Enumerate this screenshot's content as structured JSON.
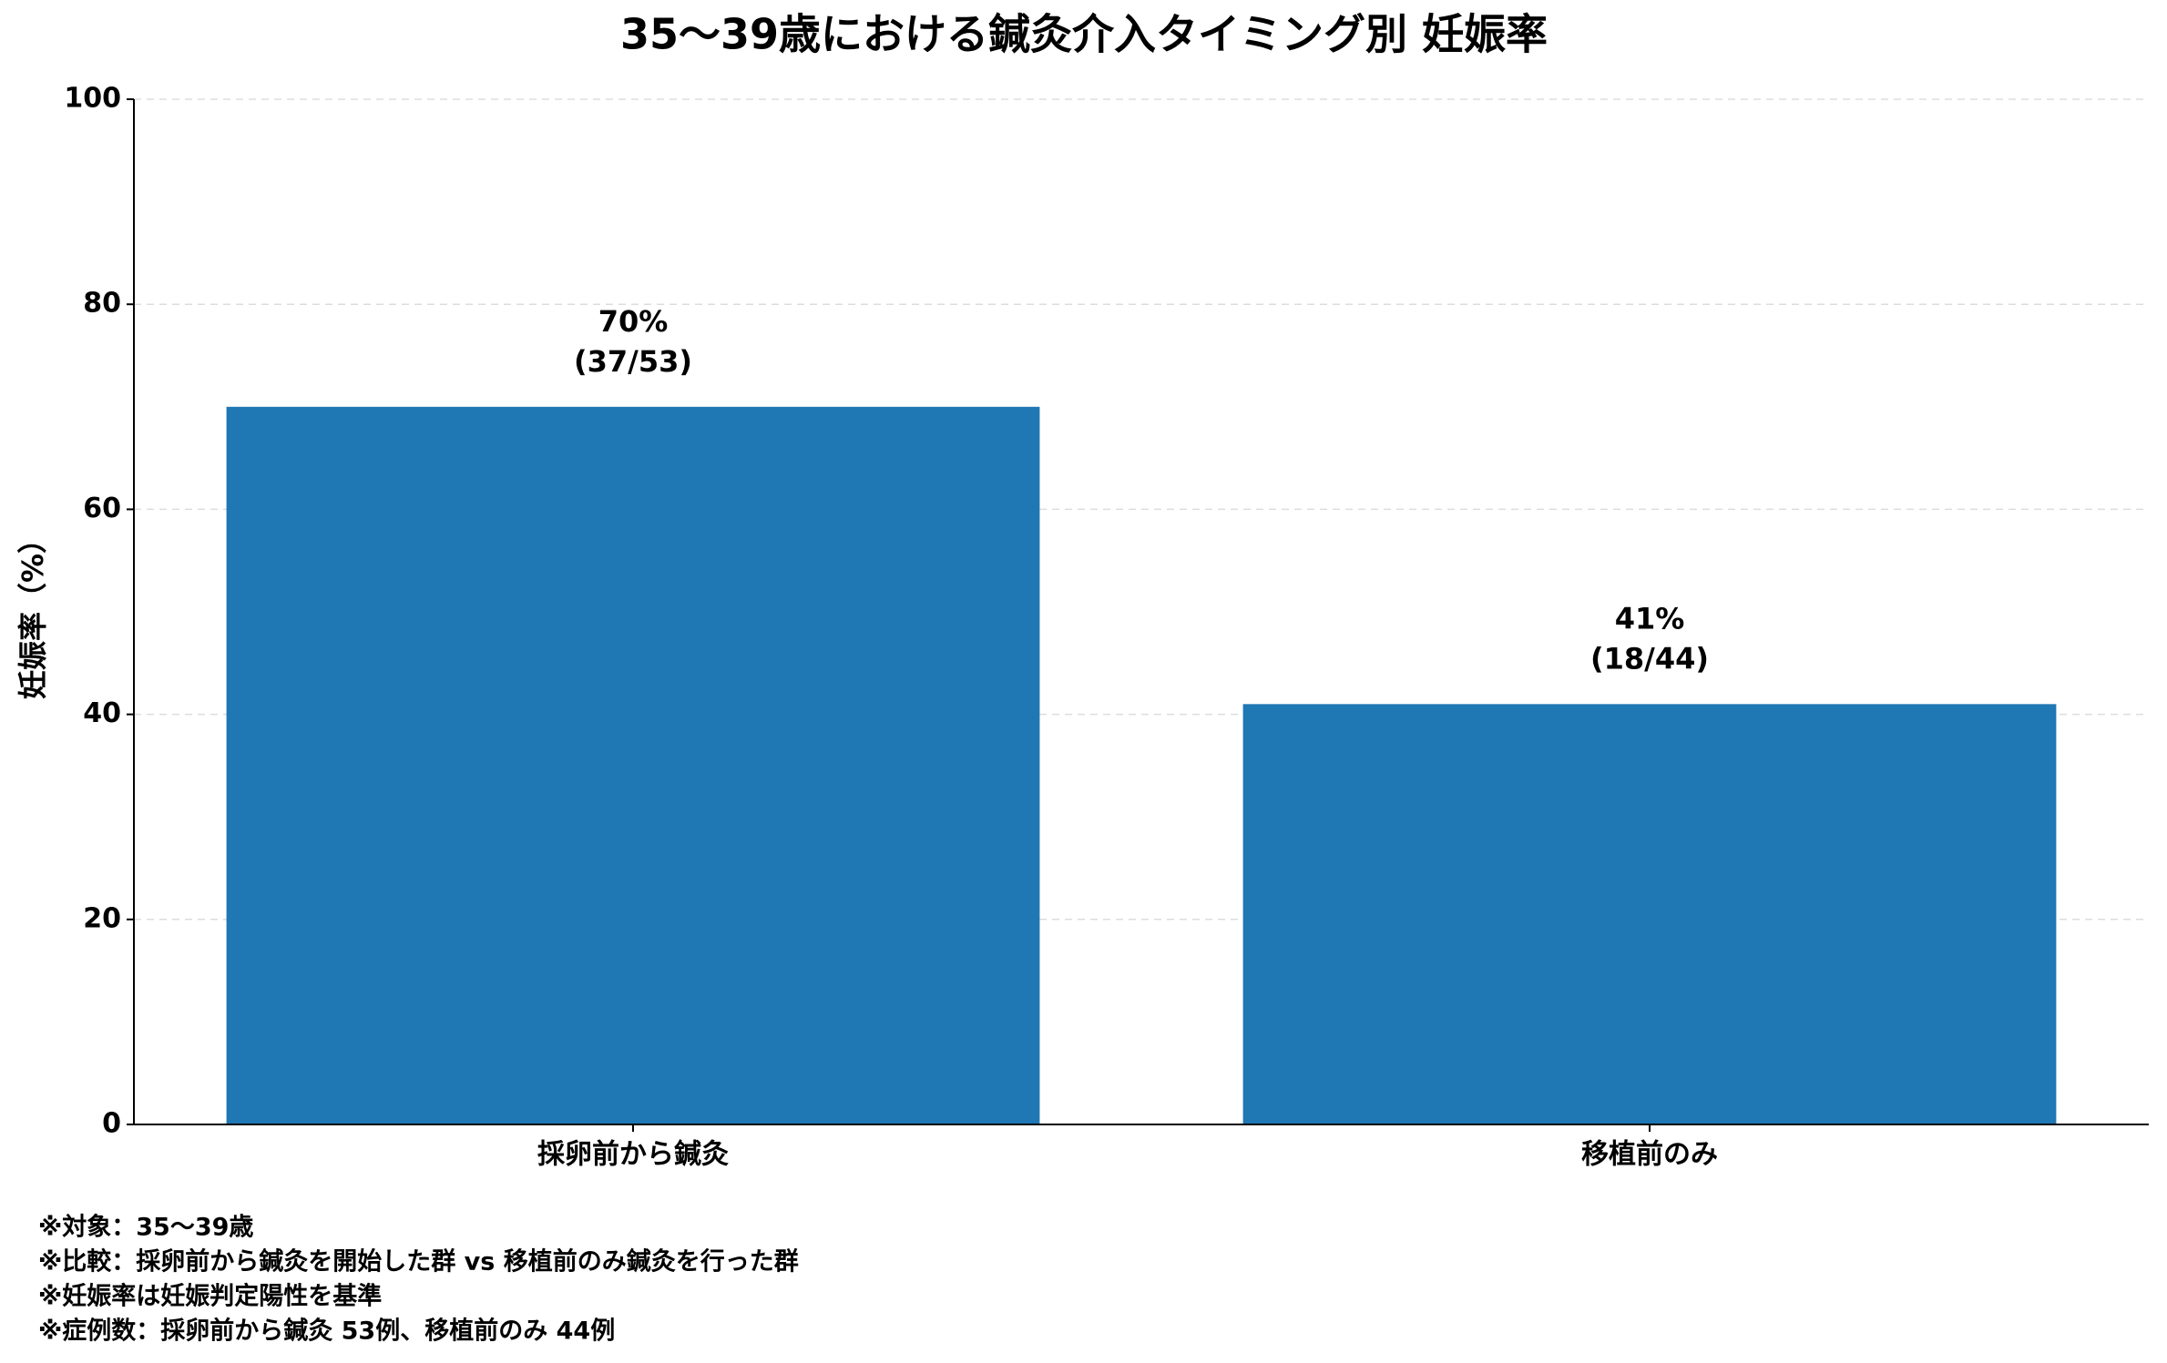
{
  "chart_data": {
    "type": "bar",
    "title": "35〜39歳における鍼灸介入タイミング別 妊娠率",
    "y_label": "妊娠率（%）",
    "categories": [
      "採卵前から鍼灸",
      "移植前のみ"
    ],
    "values": [
      70,
      41
    ],
    "value_labels": [
      "70%",
      "41%"
    ],
    "count_labels": [
      "(37/53)",
      "(18/44)"
    ],
    "color": "#1f77b4",
    "ylim": [
      0,
      100
    ],
    "yticks": [
      0,
      20,
      40,
      60,
      80,
      100
    ],
    "grid": true,
    "notes": [
      "※対象：35〜39歳",
      "※比較：採卵前から鍼灸を開始した群 vs 移植前のみ鍼灸を行った群",
      "※妊娠率は妊娠判定陽性を基準",
      "※症例数：採卵前から鍼灸 53例、移植前のみ 44例"
    ]
  }
}
